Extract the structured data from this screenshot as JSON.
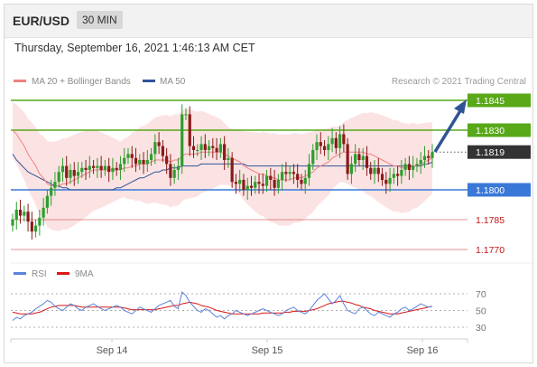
{
  "header": {
    "pair": "EUR/USD",
    "timeframe": "30 MIN"
  },
  "datetime": "Thursday, September 16, 2021 1:46:13 AM CET",
  "legend": {
    "ma20": "MA 20 + Bollinger Bands",
    "ma50": "MA 50",
    "credit": "Research © 2021 Trading Central"
  },
  "rsi_legend": {
    "rsi": "RSI",
    "ma9": "9MA"
  },
  "colors": {
    "ma20": "#f08080",
    "ma50": "#2f5496",
    "up": "#2e9e2e",
    "down": "#8b1a1a",
    "green_level": "#58a818",
    "blue_level": "#3a78d8",
    "red_level": "#c01818",
    "rsi": "#5a82d8",
    "rsi_ma": "#d81818"
  },
  "chart_data": [
    {
      "type": "candlestick",
      "x_labels": [
        "Sep 14",
        "Sep 15",
        "Sep 16"
      ],
      "ylim": [
        1.1765,
        1.185
      ],
      "current_price": 1.1819,
      "levels": [
        {
          "value": 1.1845,
          "label": "1.1845",
          "style": "green-box"
        },
        {
          "value": 1.183,
          "label": "1.1830",
          "style": "green-box"
        },
        {
          "value": 1.1819,
          "label": "1.1819",
          "style": "dark-box"
        },
        {
          "value": 1.18,
          "label": "1.1800",
          "style": "blue-box"
        },
        {
          "value": 1.1785,
          "label": "1.1785",
          "style": "red-text"
        },
        {
          "value": 1.177,
          "label": "1.1770",
          "style": "red-text"
        }
      ],
      "close": [
        1.1785,
        1.179,
        1.1787,
        1.1789,
        1.1784,
        1.1779,
        1.1782,
        1.1786,
        1.1791,
        1.1797,
        1.1801,
        1.1804,
        1.1809,
        1.1812,
        1.1806,
        1.181,
        1.1807,
        1.1809,
        1.1811,
        1.181,
        1.1812,
        1.1811,
        1.1812,
        1.181,
        1.1812,
        1.1809,
        1.1811,
        1.181,
        1.1813,
        1.1816,
        1.1818,
        1.1816,
        1.1813,
        1.1815,
        1.1813,
        1.1815,
        1.1818,
        1.1824,
        1.1822,
        1.1817,
        1.1813,
        1.1806,
        1.181,
        1.1812,
        1.1838,
        1.1838,
        1.1822,
        1.182,
        1.182,
        1.1823,
        1.182,
        1.1822,
        1.1821,
        1.1819,
        1.1823,
        1.1815,
        1.1816,
        1.1804,
        1.1803,
        1.1805,
        1.18,
        1.1802,
        1.1801,
        1.1804,
        1.1803,
        1.1802,
        1.1807,
        1.1805,
        1.1801,
        1.1805,
        1.1809,
        1.1808,
        1.1809,
        1.1808,
        1.1805,
        1.1803,
        1.1806,
        1.1813,
        1.182,
        1.1824,
        1.1822,
        1.182,
        1.1823,
        1.1826,
        1.1821,
        1.1828,
        1.1823,
        1.1808,
        1.1813,
        1.1818,
        1.1815,
        1.1817,
        1.1811,
        1.1808,
        1.1811,
        1.1808,
        1.1805,
        1.1803,
        1.1806,
        1.1808,
        1.1807,
        1.181,
        1.1813,
        1.181,
        1.1812,
        1.1813,
        1.1815,
        1.1817,
        1.1816,
        1.1819
      ],
      "ma20": [
        1.183,
        1.1828,
        1.1825,
        1.1822,
        1.1818,
        1.1815,
        1.1812,
        1.1808,
        1.1806,
        1.1803,
        1.1802,
        1.1802,
        1.1802,
        1.1803,
        1.1803,
        1.1804,
        1.1805,
        1.1806,
        1.1807,
        1.1808,
        1.1809,
        1.181,
        1.181,
        1.181,
        1.181,
        1.181,
        1.181,
        1.181,
        1.181,
        1.1811,
        1.1811,
        1.1812,
        1.1812,
        1.1813,
        1.1813,
        1.1813,
        1.1814,
        1.1815,
        1.1815,
        1.1815,
        1.1815,
        1.1814,
        1.1815,
        1.1815,
        1.1817,
        1.1818,
        1.1818,
        1.1818,
        1.1818,
        1.1819,
        1.1819,
        1.1819,
        1.1819,
        1.1819,
        1.1819,
        1.1818,
        1.1817,
        1.1816,
        1.1815,
        1.1814,
        1.1812,
        1.1811,
        1.181,
        1.1809,
        1.1808,
        1.1808,
        1.1807,
        1.1806,
        1.1806,
        1.1805,
        1.1805,
        1.1805,
        1.1805,
        1.1806,
        1.1806,
        1.1806,
        1.1807,
        1.1808,
        1.1809,
        1.1811,
        1.1812,
        1.1813,
        1.1814,
        1.1816,
        1.1817,
        1.1818,
        1.1819,
        1.1819,
        1.1819,
        1.1819,
        1.1819,
        1.1819,
        1.1818,
        1.1818,
        1.1817,
        1.1816,
        1.1815,
        1.1814,
        1.1813,
        1.1812,
        1.1812,
        1.1811,
        1.1811,
        1.1811,
        1.1812,
        1.1812,
        1.1813,
        1.1814,
        1.1815,
        1.1816
      ],
      "ma50": [
        1.1818,
        1.1815,
        1.1813,
        1.1811,
        1.1809,
        1.1808,
        1.1807,
        1.1806,
        1.1805,
        1.1804,
        1.1803,
        1.1802,
        1.1802,
        1.1801,
        1.1801,
        1.18,
        1.18,
        1.18,
        1.18,
        1.18,
        1.18,
        1.18,
        1.18,
        1.18,
        1.18,
        1.18,
        1.18,
        1.1801,
        1.1801,
        1.1802,
        1.1803,
        1.1804,
        1.1805,
        1.1806,
        1.1806,
        1.1807,
        1.1808,
        1.1809,
        1.1809,
        1.181,
        1.181,
        1.1811,
        1.1811,
        1.1811,
        1.1812,
        1.1812,
        1.1812,
        1.1812,
        1.1812,
        1.1813,
        1.1813,
        1.1813,
        1.1813,
        1.1813,
        1.1813,
        1.1813,
        1.1813,
        1.1813,
        1.1813,
        1.1813,
        1.1813,
        1.1812,
        1.1812,
        1.1812,
        1.1812,
        1.1812,
        1.1812,
        1.1812,
        1.1812,
        1.1812,
        1.1812,
        1.1812,
        1.1812,
        1.1812,
        1.1812,
        1.1812,
        1.1812,
        1.1812,
        1.1812,
        1.1812,
        1.1812,
        1.1812,
        1.1812,
        1.1812,
        1.1812,
        1.1812,
        1.1812,
        1.1812,
        1.1812,
        1.1812,
        1.1812,
        1.1812,
        1.1812,
        1.1812,
        1.1812,
        1.1812,
        1.1812,
        1.1812,
        1.1812,
        1.1812,
        1.1812,
        1.1812,
        1.1812,
        1.1812,
        1.1812,
        1.1812,
        1.1812,
        1.1813,
        1.1813,
        1.1814
      ]
    },
    {
      "type": "line",
      "ylim": [
        20,
        80
      ],
      "y_ticks": [
        70,
        50,
        30
      ],
      "rsi": [
        38,
        42,
        40,
        44,
        46,
        48,
        52,
        55,
        58,
        62,
        60,
        55,
        52,
        50,
        54,
        58,
        56,
        52,
        50,
        54,
        56,
        58,
        55,
        52,
        50,
        52,
        54,
        56,
        54,
        50,
        48,
        46,
        50,
        54,
        52,
        50,
        48,
        52,
        56,
        58,
        60,
        62,
        55,
        52,
        72,
        68,
        60,
        55,
        50,
        48,
        52,
        50,
        46,
        42,
        44,
        40,
        44,
        46,
        50,
        48,
        46,
        44,
        46,
        48,
        50,
        52,
        50,
        48,
        46,
        44,
        46,
        50,
        52,
        54,
        50,
        48,
        46,
        50,
        56,
        62,
        66,
        70,
        64,
        58,
        62,
        68,
        58,
        50,
        48,
        46,
        52,
        54,
        50,
        46,
        44,
        48,
        46,
        44,
        42,
        46,
        48,
        52,
        54,
        50,
        52,
        55,
        58,
        56,
        54,
        55
      ],
      "rsi_ma": [
        48,
        47,
        46,
        46,
        46,
        46,
        47,
        48,
        50,
        52,
        54,
        55,
        56,
        56,
        56,
        56,
        56,
        55,
        54,
        54,
        54,
        54,
        54,
        54,
        54,
        54,
        54,
        54,
        54,
        53,
        52,
        51,
        51,
        51,
        51,
        51,
        51,
        51,
        52,
        53,
        54,
        55,
        56,
        56,
        58,
        59,
        60,
        59,
        58,
        56,
        55,
        54,
        52,
        50,
        49,
        48,
        47,
        46,
        46,
        46,
        46,
        46,
        46,
        46,
        46,
        47,
        47,
        47,
        47,
        47,
        47,
        48,
        48,
        49,
        49,
        49,
        49,
        50,
        51,
        52,
        54,
        56,
        58,
        59,
        60,
        61,
        61,
        60,
        59,
        57,
        56,
        54,
        53,
        52,
        50,
        49,
        48,
        47,
        46,
        46,
        46,
        47,
        48,
        49,
        50,
        51,
        52,
        53,
        54,
        55
      ]
    }
  ]
}
